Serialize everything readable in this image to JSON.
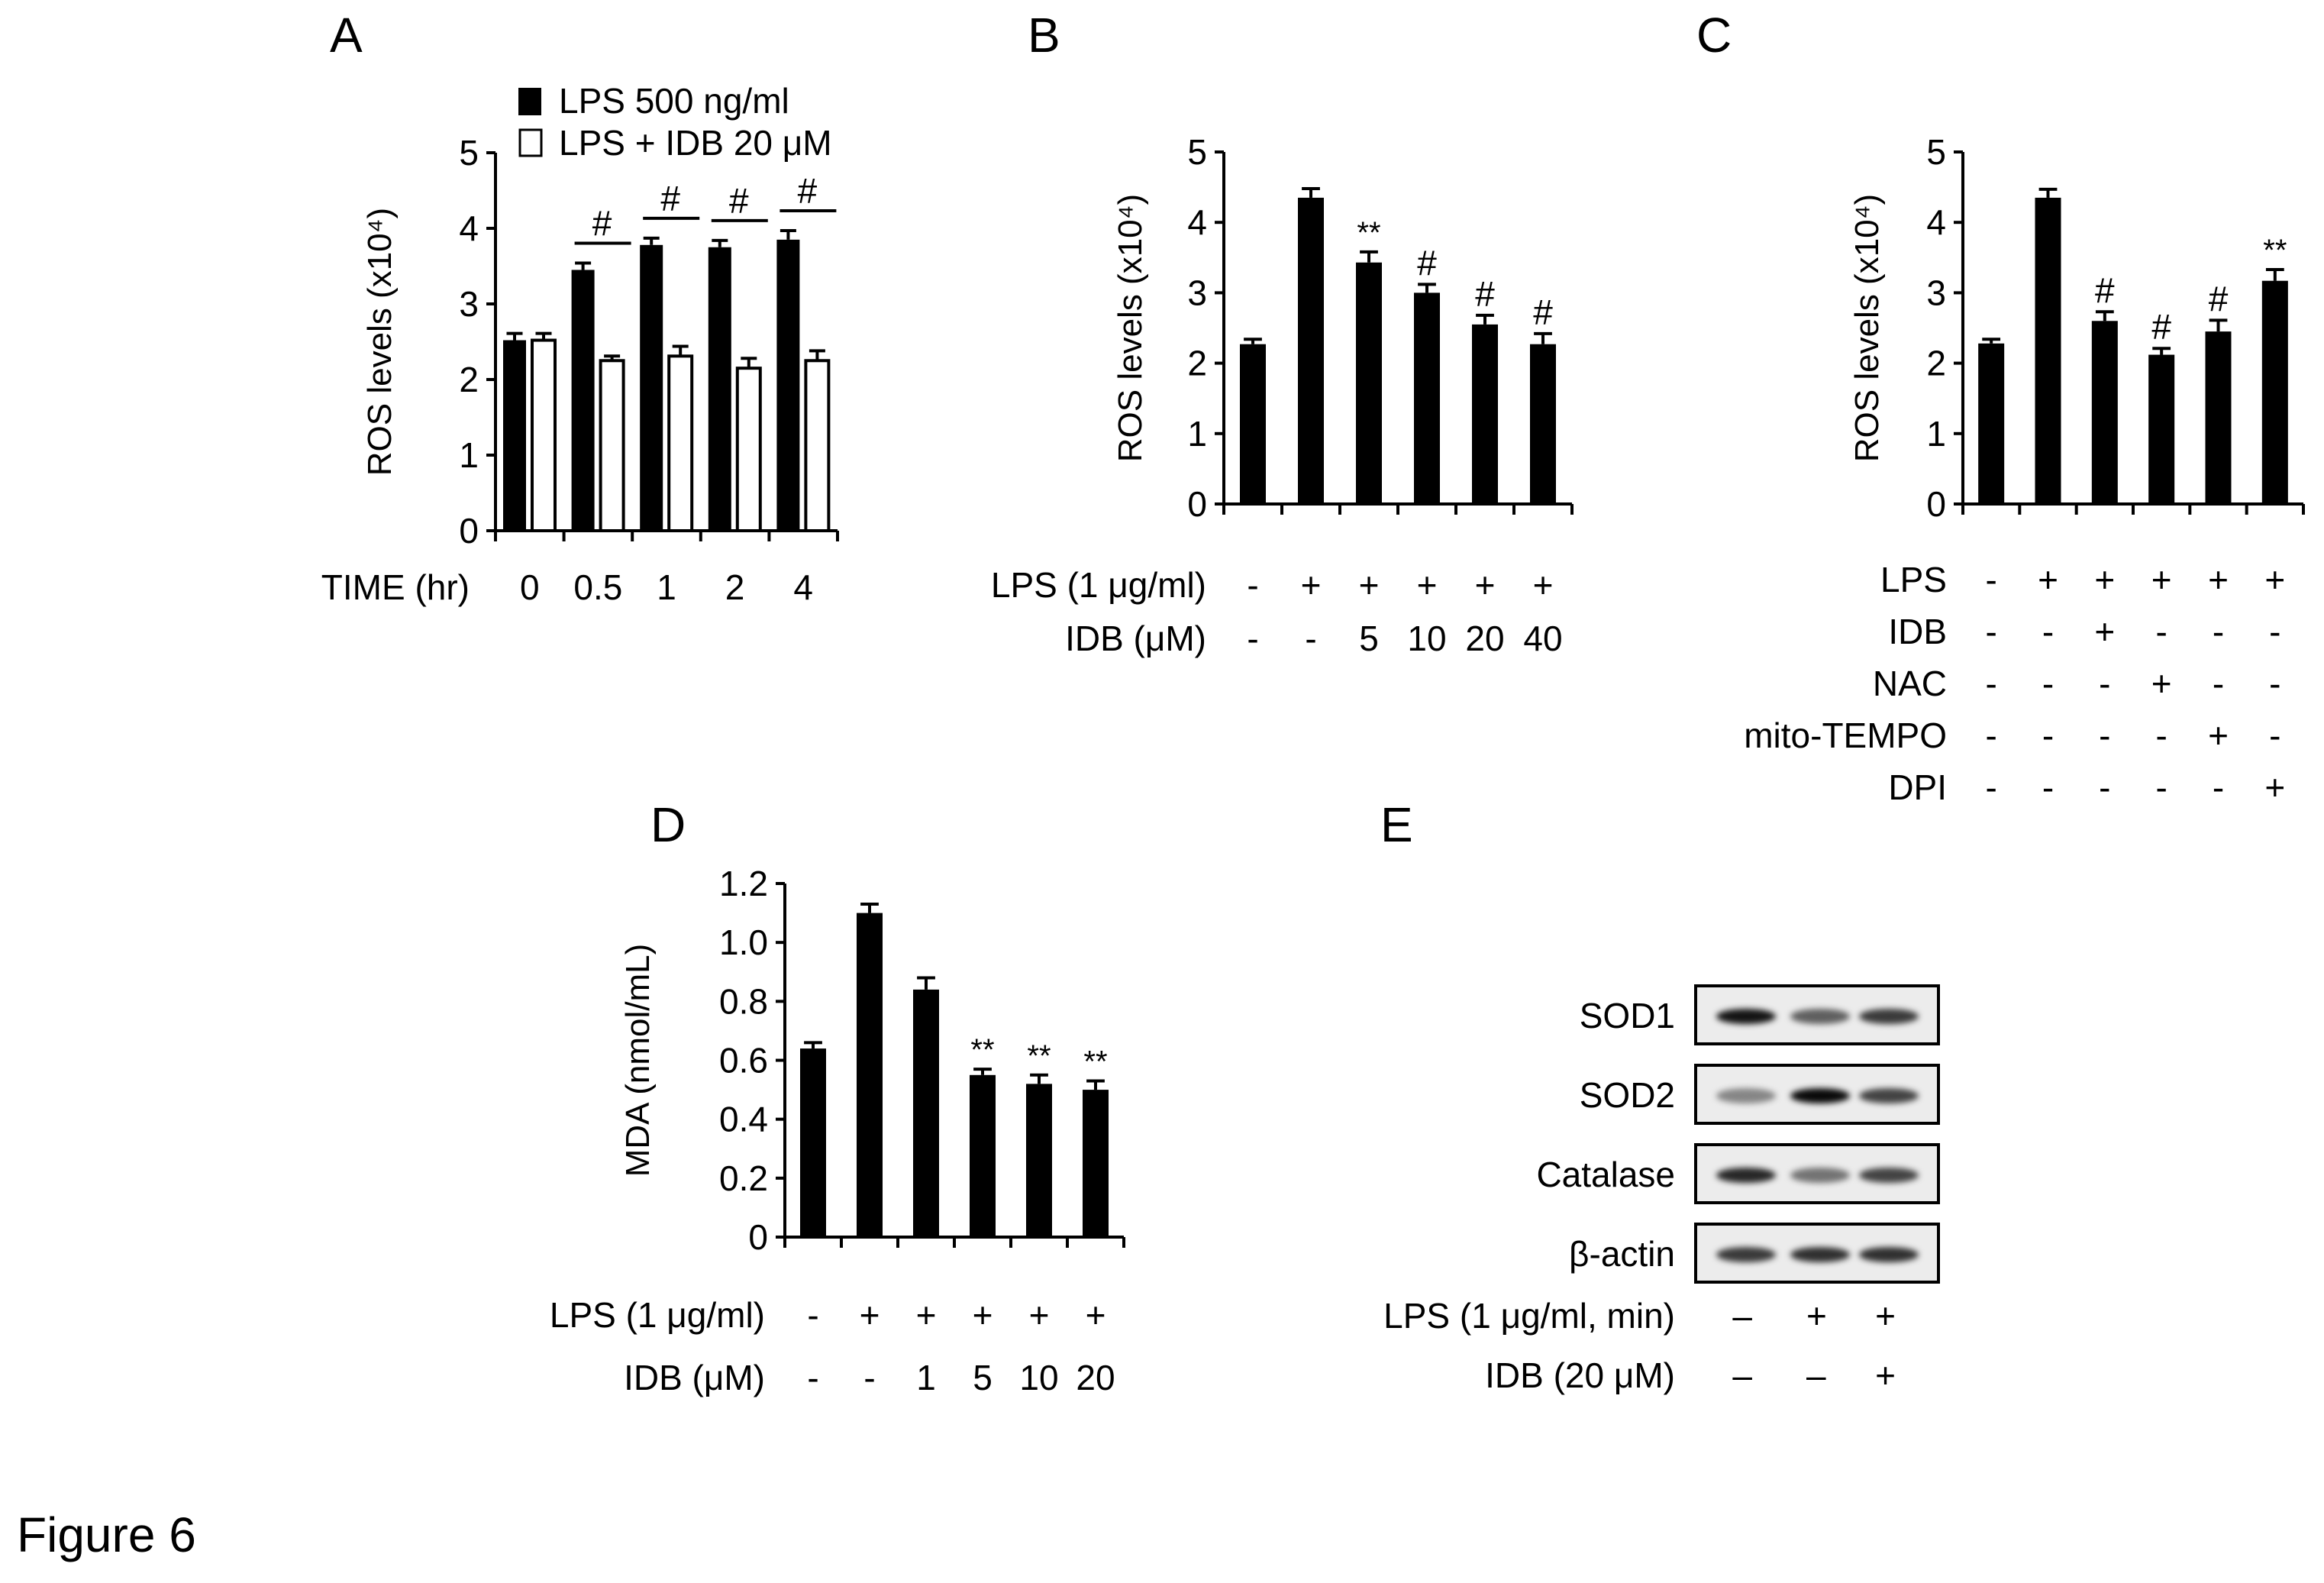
{
  "figure": {
    "title": "Figure 6"
  },
  "panels": {
    "A": {
      "letter": "A"
    },
    "B": {
      "letter": "B"
    },
    "C": {
      "letter": "C"
    },
    "D": {
      "letter": "D"
    },
    "E": {
      "letter": "E"
    }
  },
  "colors": {
    "bar_filled": "#000000",
    "bar_open": "#ffffff",
    "axis": "#000000",
    "blot_bg": "#ececec",
    "band": "#111111"
  },
  "chart_data": [
    {
      "id": "A",
      "type": "bar",
      "title": "",
      "xlabel": "TIME (hr)",
      "ylabel": "ROS levels (x10⁴)",
      "ylim": [
        0,
        5
      ],
      "yticks": [
        0,
        1,
        2,
        3,
        4,
        5
      ],
      "categories": [
        "0",
        "0.5",
        "1",
        "2",
        "4"
      ],
      "legend_position": "top",
      "series": [
        {
          "name": "LPS 500 ng/ml",
          "fill": "black",
          "values": [
            2.52,
            3.45,
            3.78,
            3.75,
            3.85
          ],
          "errors": [
            0.09,
            0.09,
            0.09,
            0.09,
            0.12
          ]
        },
        {
          "name": "LPS + IDB 20 μM",
          "fill": "white",
          "values": [
            2.52,
            2.25,
            2.31,
            2.15,
            2.25
          ],
          "errors": [
            0.09,
            0.06,
            0.13,
            0.13,
            0.13
          ]
        }
      ],
      "annotations": [
        {
          "category": "0.5",
          "text": "#"
        },
        {
          "category": "1",
          "text": "#"
        },
        {
          "category": "2",
          "text": "#"
        },
        {
          "category": "4",
          "text": "#"
        }
      ],
      "grid": false
    },
    {
      "id": "B",
      "type": "bar",
      "xlabel": "",
      "ylabel": "ROS levels (x10⁴)",
      "ylim": [
        0,
        5
      ],
      "yticks": [
        0,
        1,
        2,
        3,
        4,
        5
      ],
      "treatment_rows": [
        {
          "label": "LPS (1 μg/ml)",
          "values": [
            "-",
            "+",
            "+",
            "+",
            "+",
            "+"
          ]
        },
        {
          "label": "IDB (μM)",
          "values": [
            "-",
            "-",
            "5",
            "10",
            "20",
            "40"
          ]
        }
      ],
      "series": [
        {
          "name": "ROS",
          "values": [
            2.27,
            4.35,
            3.43,
            3.0,
            2.55,
            2.27
          ],
          "errors": [
            0.07,
            0.13,
            0.15,
            0.12,
            0.13,
            0.15
          ]
        }
      ],
      "annotations": [
        "",
        "",
        "**",
        "#",
        "#",
        "#"
      ],
      "grid": false
    },
    {
      "id": "C",
      "type": "bar",
      "xlabel": "",
      "ylabel": "ROS levels (x10⁴)",
      "ylim": [
        0,
        5
      ],
      "yticks": [
        0,
        1,
        2,
        3,
        4,
        5
      ],
      "treatment_rows": [
        {
          "label": "LPS",
          "values": [
            "-",
            "+",
            "+",
            "+",
            "+",
            "+"
          ]
        },
        {
          "label": "IDB",
          "values": [
            "-",
            "-",
            "+",
            "-",
            "-",
            "-"
          ]
        },
        {
          "label": "NAC",
          "values": [
            "-",
            "-",
            "-",
            "+",
            "-",
            "-"
          ]
        },
        {
          "label": "mito-TEMPO",
          "values": [
            "-",
            "-",
            "-",
            "-",
            "+",
            "-"
          ]
        },
        {
          "label": "DPI",
          "values": [
            "-",
            "-",
            "-",
            "-",
            "-",
            "+"
          ]
        }
      ],
      "series": [
        {
          "name": "ROS",
          "values": [
            2.28,
            4.35,
            2.6,
            2.12,
            2.45,
            3.17
          ],
          "errors": [
            0.06,
            0.12,
            0.13,
            0.09,
            0.16,
            0.16
          ]
        }
      ],
      "annotations": [
        "",
        "",
        "#",
        "#",
        "#",
        "**"
      ],
      "grid": false
    },
    {
      "id": "D",
      "type": "bar",
      "xlabel": "",
      "ylabel": "MDA (nmol/mL)",
      "ylim": [
        0,
        1.2
      ],
      "yticks": [
        "0",
        "0.2",
        "0.4",
        "0.6",
        "0.8",
        "1.0",
        "1.2"
      ],
      "treatment_rows": [
        {
          "label": "LPS (1 μg/ml)",
          "values": [
            "-",
            "+",
            "+",
            "+",
            "+",
            "+"
          ]
        },
        {
          "label": "IDB (μM)",
          "values": [
            "-",
            "-",
            "1",
            "5",
            "10",
            "20"
          ]
        }
      ],
      "series": [
        {
          "name": "MDA",
          "values": [
            0.64,
            1.1,
            0.84,
            0.55,
            0.52,
            0.5
          ],
          "errors": [
            0.02,
            0.03,
            0.04,
            0.02,
            0.03,
            0.03
          ]
        }
      ],
      "annotations": [
        "",
        "",
        "",
        "**",
        "**",
        "**"
      ],
      "grid": false
    }
  ],
  "western_blot": {
    "id": "E",
    "rows": [
      {
        "label": "SOD1",
        "intensities": [
          0.95,
          0.55,
          0.75
        ]
      },
      {
        "label": "SOD2",
        "intensities": [
          0.35,
          1.0,
          0.7
        ]
      },
      {
        "label": "Catalase",
        "intensities": [
          0.85,
          0.45,
          0.7
        ]
      },
      {
        "label": "β-actin",
        "intensities": [
          0.75,
          0.8,
          0.8
        ]
      }
    ],
    "treatment_rows": [
      {
        "label": "LPS (1 μg/ml, min)",
        "values": [
          "–",
          "+",
          "+"
        ]
      },
      {
        "label": "IDB (20 μM)",
        "values": [
          "–",
          "–",
          "+"
        ]
      }
    ]
  }
}
